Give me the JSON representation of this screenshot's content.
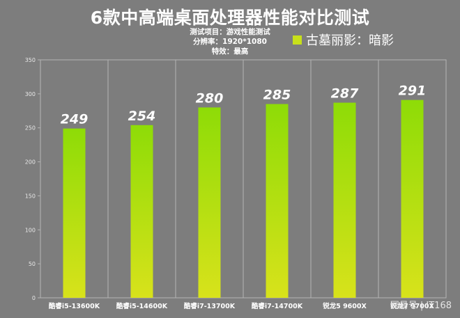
{
  "chart_data": {
    "type": "bar",
    "title": "6款中高端桌面处理器性能对比测试",
    "subtitle_lines": [
      "测试项目：游戏性能测试",
      "分辨率：1920*1080",
      "特效：最高"
    ],
    "categories": [
      "酷睿i5-13600K",
      "酷睿i5-14600K",
      "酷睿i7-13700K",
      "酷睿i7-14700K",
      "锐龙5 9600X",
      "锐龙7 9700X"
    ],
    "series": [
      {
        "name": "古墓丽影：暗影",
        "values": [
          249,
          254,
          280,
          285,
          287,
          291
        ]
      }
    ],
    "ylim": [
      0,
      350
    ],
    "yticks": [
      0,
      50,
      100,
      150,
      200,
      250,
      300,
      350
    ],
    "grid": "vertical-category-separators",
    "legend_position": "top-right",
    "colors": {
      "bar_top": "#8edc07",
      "bar_bottom": "#d8e21b",
      "background": "#7d7d7d",
      "grid": "#b5b5b5"
    }
  },
  "watermark": "网易号 | IT168"
}
